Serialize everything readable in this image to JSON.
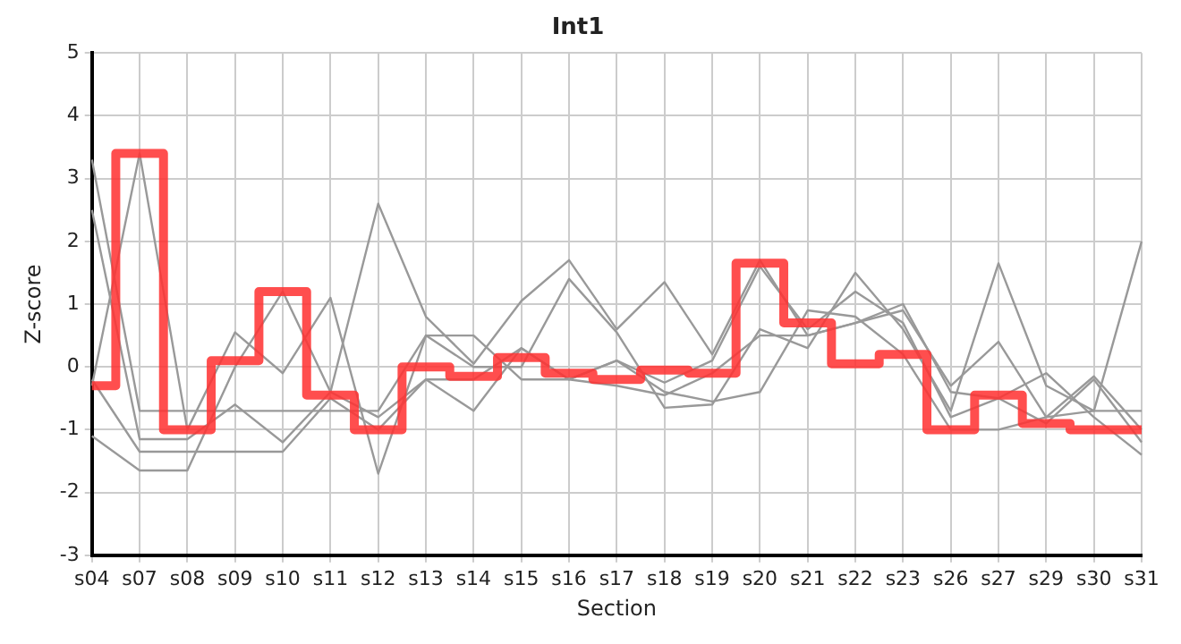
{
  "chart_data": {
    "type": "line",
    "title": "Int1",
    "xlabel": "Section",
    "ylabel": "Z-score",
    "categories": [
      "s04",
      "s07",
      "s08",
      "s09",
      "s10",
      "s11",
      "s12",
      "s13",
      "s14",
      "s15",
      "s16",
      "s17",
      "s18",
      "s19",
      "s20",
      "s21",
      "s22",
      "s23",
      "s26",
      "s27",
      "s29",
      "s30",
      "s31"
    ],
    "series": [
      {
        "type": "line",
        "color": "#999999",
        "values": [
          3.3,
          -0.7,
          -0.7,
          -0.7,
          -0.7,
          -0.7,
          -0.7,
          0.5,
          0.5,
          -0.2,
          -0.2,
          -0.3,
          -0.45,
          -0.1,
          0.5,
          0.5,
          0.7,
          0.9,
          -0.3,
          0.4,
          -0.8,
          -0.7,
          -0.7
        ]
      },
      {
        "type": "line",
        "color": "#999999",
        "values": [
          2.5,
          -1.15,
          -1.15,
          -0.6,
          -1.2,
          -0.4,
          -0.8,
          -0.2,
          -0.2,
          0.3,
          -0.2,
          0.1,
          -0.25,
          0.1,
          1.6,
          0.6,
          1.2,
          0.7,
          -0.8,
          -0.5,
          -0.9,
          -0.2,
          -1.2
        ]
      },
      {
        "type": "line",
        "color": "#999999",
        "values": [
          -0.3,
          3.4,
          -1.0,
          0.55,
          -0.1,
          1.1,
          -1.7,
          0.5,
          0.0,
          0.0,
          1.4,
          0.55,
          -0.65,
          -0.6,
          0.6,
          0.3,
          1.5,
          0.6,
          -0.7,
          1.65,
          -0.3,
          -0.7,
          2.0
        ]
      },
      {
        "type": "line",
        "color": "#999999",
        "values": [
          -1.1,
          -1.65,
          -1.65,
          0.0,
          1.2,
          -0.4,
          2.6,
          0.8,
          0.05,
          1.05,
          1.7,
          0.6,
          1.35,
          0.2,
          1.7,
          0.5,
          0.7,
          1.0,
          -0.4,
          -0.5,
          -0.1,
          -0.8,
          -1.4
        ]
      },
      {
        "type": "line",
        "color": "#999999",
        "values": [
          -0.2,
          -1.35,
          -1.35,
          -1.35,
          -1.35,
          -0.5,
          -1.0,
          -0.2,
          -0.7,
          0.3,
          -0.2,
          0.1,
          -0.4,
          -0.55,
          -0.4,
          0.9,
          0.8,
          0.2,
          -1.0,
          -1.0,
          -0.8,
          -0.15,
          -1.0
        ]
      },
      {
        "type": "step",
        "color": "#ff3333",
        "values": [
          -0.3,
          3.4,
          -1.0,
          0.1,
          1.2,
          -0.45,
          -1.0,
          0.0,
          -0.15,
          0.15,
          -0.1,
          -0.2,
          -0.05,
          -0.1,
          1.65,
          0.7,
          0.05,
          0.2,
          -1.0,
          -0.45,
          -0.9,
          -1.0,
          -1.0
        ]
      }
    ],
    "ylim": [
      -3,
      5
    ],
    "yticks": [
      -3,
      -2,
      -1,
      0,
      1,
      2,
      3,
      4,
      5
    ],
    "grid": true,
    "legend": false,
    "marker": "none"
  }
}
